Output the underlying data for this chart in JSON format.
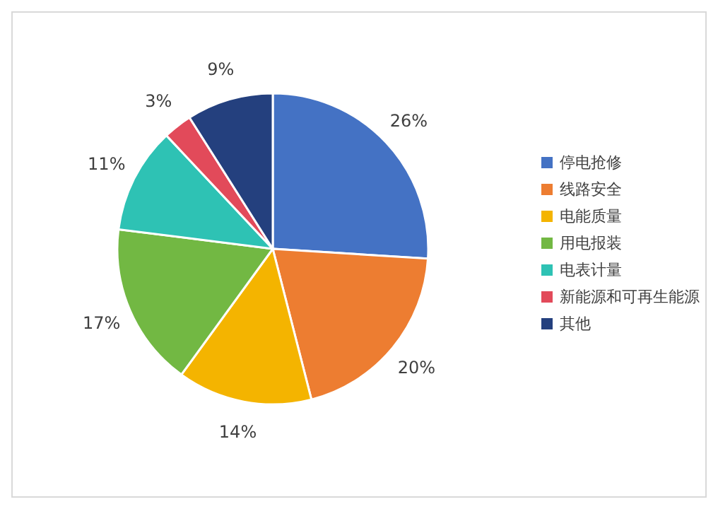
{
  "chart_data": {
    "type": "pie",
    "categories": [
      "停电抢修",
      "线路安全",
      "电能质量",
      "用电报装",
      "电表计量",
      "新能源和可再生能源",
      "其他"
    ],
    "values": [
      26,
      20,
      14,
      17,
      11,
      3,
      9
    ],
    "colors": [
      "#4472c4",
      "#ed7d31",
      "#f4b400",
      "#72b843",
      "#2ec2b4",
      "#e24a5a",
      "#24407e"
    ],
    "value_labels": [
      "26%",
      "20%",
      "14%",
      "17%",
      "11%",
      "3%",
      "9%"
    ],
    "legend": "right"
  }
}
